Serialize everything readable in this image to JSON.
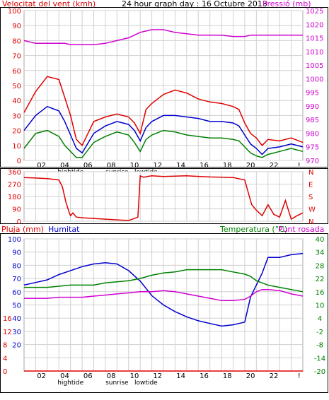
{
  "chart_data": [
    {
      "type": "line",
      "title": "24 hour graph day : 16 Octubre 2013",
      "left_label": "Velocitat del vent (kmh)",
      "right_label": "Pressió (mb)",
      "y_left": {
        "min": 0,
        "max": 100,
        "ticks": [
          0,
          10,
          20,
          30,
          40,
          50,
          60,
          70,
          80,
          90,
          100
        ]
      },
      "y_right": {
        "min": 970,
        "max": 1025,
        "ticks": [
          970,
          975,
          980,
          985,
          990,
          995,
          1000,
          1005,
          1010,
          1015,
          1020,
          1025
        ]
      },
      "x_ticks": [
        "02",
        "04",
        "06",
        "08",
        "10",
        "12",
        "14",
        "16",
        "18",
        "20",
        "22",
        "!"
      ],
      "x_events": [
        "hightide",
        "sunrise",
        "lowtide"
      ],
      "hours": [
        0,
        1,
        2,
        3,
        3.5,
        4,
        4.5,
        5,
        6,
        7,
        8,
        9,
        9.5,
        10,
        10.5,
        11,
        12,
        13,
        14,
        15,
        16,
        17,
        18,
        18.5,
        19,
        19.5,
        20,
        20.5,
        21,
        22,
        23,
        24
      ],
      "series": [
        {
          "name": "gust",
          "color": "#e00000",
          "axis": "left",
          "values": [
            32,
            46,
            56,
            54,
            42,
            30,
            14,
            10,
            26,
            29,
            31,
            29,
            25,
            18,
            34,
            38,
            44,
            47,
            45,
            41,
            39,
            38,
            36,
            34,
            25,
            18,
            15,
            10,
            14,
            13,
            15,
            12
          ]
        },
        {
          "name": "average",
          "color": "#0000cc",
          "axis": "left",
          "values": [
            20,
            30,
            36,
            33,
            26,
            17,
            8,
            5,
            18,
            23,
            26,
            24,
            20,
            13,
            22,
            26,
            30,
            30,
            29,
            28,
            26,
            26,
            25,
            23,
            17,
            11,
            8,
            4,
            8,
            9,
            11,
            9
          ]
        },
        {
          "name": "direction",
          "color": "#008000",
          "axis": "left",
          "values": [
            8,
            18,
            20,
            16,
            10,
            6,
            2,
            2,
            12,
            16,
            19,
            17,
            12,
            6,
            14,
            17,
            20,
            19,
            17,
            16,
            15,
            15,
            14,
            13,
            9,
            5,
            3,
            2,
            4,
            6,
            8,
            6
          ]
        },
        {
          "name": "pressure",
          "color": "#d000d0",
          "axis": "right",
          "values": [
            1014,
            1013,
            1013,
            1013,
            1013,
            1012.5,
            1012.5,
            1012.5,
            1012.5,
            1013,
            1014,
            1015,
            1016,
            1017,
            1017.5,
            1018,
            1018,
            1017,
            1016.5,
            1016,
            1016,
            1016,
            1015.5,
            1015.5,
            1015.5,
            1016,
            1016,
            1016,
            1016,
            1016,
            1016,
            1016
          ]
        }
      ]
    },
    {
      "type": "line",
      "y_left": {
        "min": 0,
        "max": 360,
        "ticks": [
          0,
          90,
          180,
          270,
          360
        ]
      },
      "compass_labels": [
        "N",
        "W",
        "S",
        "E",
        "N"
      ],
      "hours": [
        0,
        1,
        2,
        3,
        3.3,
        3.6,
        3.9,
        4,
        4.2,
        4.5,
        5,
        6,
        7,
        8,
        9,
        9.5,
        9.8,
        10,
        10.3,
        10.6,
        11,
        12,
        13,
        14,
        15,
        16,
        17,
        18,
        19,
        19.3,
        19.6,
        20,
        20.5,
        21,
        21.5,
        22,
        22.5,
        23,
        23.5,
        24
      ],
      "series": [
        {
          "name": "wind direction",
          "color": "#e00000",
          "values": [
            318,
            314,
            310,
            300,
            250,
            140,
            60,
            40,
            60,
            30,
            25,
            20,
            15,
            10,
            5,
            20,
            30,
            330,
            320,
            325,
            330,
            325,
            328,
            330,
            326,
            322,
            320,
            318,
            300,
            210,
            120,
            80,
            40,
            120,
            50,
            30,
            150,
            15,
            40,
            60
          ]
        }
      ]
    },
    {
      "type": "line",
      "left_labels": [
        "Pluja (mm)",
        "Humitat"
      ],
      "right_labels": [
        "Temperatura (°C)",
        "Punt rosada"
      ],
      "y_left": {
        "min": 0,
        "max": 100,
        "ticks": [
          0,
          4,
          8,
          10,
          12,
          16,
          20,
          30,
          40,
          50,
          60,
          70,
          80,
          90,
          100
        ]
      },
      "y_right": {
        "min": -20,
        "max": 40,
        "ticks": [
          -20,
          -14,
          -8,
          -2,
          4,
          10,
          16,
          22,
          28,
          34,
          40
        ]
      },
      "x_ticks": [
        "02",
        "04",
        "06",
        "08",
        "10",
        "12",
        "14",
        "16",
        "18",
        "20",
        "22",
        "!"
      ],
      "x_events": [
        "hightide",
        "sunrise",
        "lowtide"
      ],
      "hours": [
        0,
        1,
        2,
        3,
        4,
        5,
        6,
        7,
        8,
        9,
        10,
        11,
        12,
        13,
        14,
        15,
        16,
        17,
        18,
        19,
        19.5,
        20,
        20.5,
        21,
        22,
        23,
        24
      ],
      "series": [
        {
          "name": "rain",
          "color": "#e00000",
          "axis": "left",
          "values": [
            0,
            0,
            0,
            0,
            0,
            0,
            0,
            0,
            0,
            0,
            0,
            0,
            0,
            0,
            0,
            0,
            0,
            0,
            0,
            0,
            0,
            0,
            0,
            0,
            0,
            0,
            0
          ]
        },
        {
          "name": "humidity",
          "color": "#0000cc",
          "axis": "left",
          "values": [
            65,
            67,
            69,
            73,
            76,
            79,
            81,
            82,
            81,
            76,
            68,
            57,
            50,
            45,
            41,
            38,
            36,
            34,
            35,
            37,
            56,
            65,
            74,
            86,
            86,
            88,
            89
          ]
        },
        {
          "name": "temperature",
          "color": "#008000",
          "axis": "right",
          "values": [
            18,
            18,
            18,
            18.5,
            19,
            19,
            19,
            20,
            20.5,
            21,
            22,
            23.5,
            24.5,
            25,
            26,
            26,
            26,
            26,
            25,
            24,
            23,
            21,
            20,
            19,
            18,
            17,
            16
          ]
        },
        {
          "name": "dew point",
          "color": "#d000d0",
          "axis": "right",
          "values": [
            13,
            13,
            13,
            13.5,
            13.5,
            13.5,
            14,
            14.5,
            15,
            15.5,
            16,
            16,
            16.5,
            16,
            15,
            14,
            13,
            12,
            12,
            12.5,
            14,
            16,
            17,
            17,
            16.5,
            15,
            14
          ]
        }
      ]
    }
  ]
}
